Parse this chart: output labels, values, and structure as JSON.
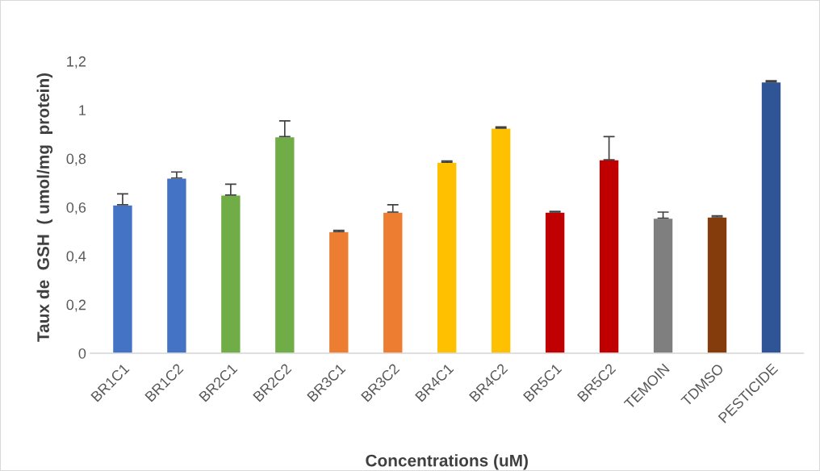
{
  "chart_data": {
    "type": "bar",
    "xlabel": "Concentrations (uM)",
    "ylabel": "Taux de  GSH  ( umol/mg  protein)",
    "categories": [
      "BR1C1",
      "BR1C2",
      "BR2C1",
      "BR2C2",
      "BR3C1",
      "BR3C2",
      "BR4C1",
      "BR4C2",
      "BR5C1",
      "BR5C2",
      "TEMOIN",
      "TDMSO",
      "PESTICIDE"
    ],
    "values": [
      0.61,
      0.72,
      0.65,
      0.89,
      0.5,
      0.58,
      0.785,
      0.925,
      0.58,
      0.795,
      0.555,
      0.56,
      1.115
    ],
    "errors": [
      [
        0.61,
        0.655
      ],
      [
        0.72,
        0.745
      ],
      [
        0.65,
        0.695
      ],
      [
        0.89,
        0.955
      ],
      [
        0.5,
        0.505
      ],
      [
        0.58,
        0.61
      ],
      [
        0.785,
        0.79
      ],
      [
        0.925,
        0.93
      ],
      [
        0.58,
        0.583
      ],
      [
        0.795,
        0.89
      ],
      [
        0.555,
        0.58
      ],
      [
        0.56,
        0.565
      ],
      [
        1.115,
        1.12
      ]
    ],
    "colors": [
      "#4472c4",
      "#4472c4",
      "#70ad47",
      "#70ad47",
      "#ed7d31",
      "#ed7d31",
      "#ffc000",
      "#ffc000",
      "#c00000",
      "#c00000",
      "#7f7f7f",
      "#843c0c",
      "#2f5597"
    ],
    "ylim": [
      0,
      1.2
    ],
    "yticks": [
      0,
      {
        "value": 0.2,
        "label": "0,2"
      },
      {
        "value": 0.4,
        "label": "0,4"
      },
      {
        "value": 0.6,
        "label": "0,6"
      },
      {
        "value": 0.8,
        "label": "0,8"
      },
      1,
      {
        "value": 1.2,
        "label": "1,2"
      }
    ],
    "grid": false,
    "legend": false
  }
}
